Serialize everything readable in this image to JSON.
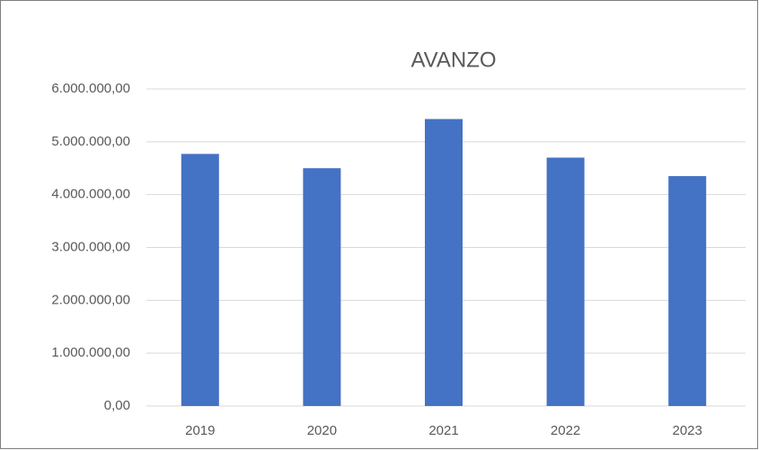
{
  "chart_data": {
    "type": "bar",
    "title": "AVANZO",
    "categories": [
      "2019",
      "2020",
      "2021",
      "2022",
      "2023"
    ],
    "values": [
      4770000,
      4500000,
      5430000,
      4700000,
      4350000
    ],
    "color": "#4472c4",
    "ylim": [
      0,
      6000000
    ],
    "yticks": [
      {
        "value": 0,
        "label": "0,00"
      },
      {
        "value": 1000000,
        "label": "1.000.000,00"
      },
      {
        "value": 2000000,
        "label": "2.000.000,00"
      },
      {
        "value": 3000000,
        "label": "3.000.000,00"
      },
      {
        "value": 4000000,
        "label": "4.000.000,00"
      },
      {
        "value": 5000000,
        "label": "5.000.000,00"
      },
      {
        "value": 6000000,
        "label": "6.000.000,00"
      }
    ],
    "grid": true
  }
}
